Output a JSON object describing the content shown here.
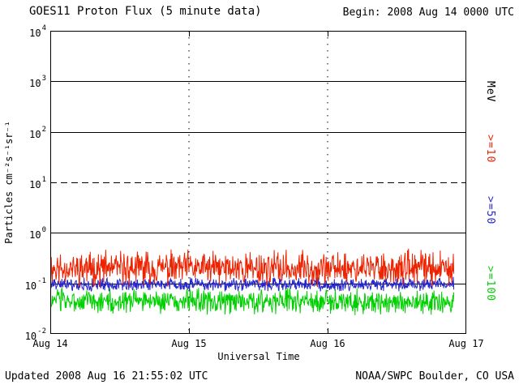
{
  "header": {
    "title": "GOES11 Proton Flux (5 minute data)",
    "begin_label": "Begin: 2008 Aug 14 0000 UTC"
  },
  "axes": {
    "x_label": "Universal Time",
    "y_label": "Particles cm⁻²s⁻¹sr⁻¹",
    "unit_label": "MeV"
  },
  "footer": {
    "updated": "Updated 2008 Aug 16 21:55:02 UTC",
    "source": "NOAA/SWPC Boulder, CO USA"
  },
  "chart_data": {
    "type": "line",
    "title": "GOES11 Proton Flux (5 minute data)",
    "xlabel": "Universal Time",
    "ylabel": "Particles cm^-2 s^-1 sr^-1 (log scale)",
    "x_ticks": [
      "Aug 14",
      "Aug 15",
      "Aug 16",
      "Aug 17"
    ],
    "x_span_days": 3,
    "data_end_day": 2.913,
    "cadence_minutes": 5,
    "y_scale": "log",
    "ylim": [
      0.01,
      10000
    ],
    "y_tick_exponents": [
      4,
      3,
      2,
      1,
      0,
      -1,
      -2
    ],
    "solid_gridlines": [
      1000,
      100,
      1,
      0.1
    ],
    "dashed_gridline": 10,
    "vertical_gridline_days": [
      1,
      2
    ],
    "legend_position": "right",
    "series": [
      {
        "name": ">=10",
        "units": "MeV",
        "color": "#ed2200",
        "approx_mean_flux": 0.2,
        "approx_min_flux": 0.08,
        "approx_max_flux": 0.5,
        "log10_mean": -0.7,
        "log10_spread": 0.28,
        "seed": 11
      },
      {
        "name": ">=50",
        "units": "MeV",
        "color": "#2626cc",
        "approx_mean_flux": 0.1,
        "approx_min_flux": 0.065,
        "approx_max_flux": 0.14,
        "log10_mean": -1.02,
        "log10_spread": 0.11,
        "seed": 52
      },
      {
        "name": ">=100",
        "units": "MeV",
        "color": "#00cf00",
        "approx_mean_flux": 0.045,
        "approx_min_flux": 0.022,
        "approx_max_flux": 0.085,
        "log10_mean": -1.36,
        "log10_spread": 0.2,
        "seed": 103
      }
    ]
  }
}
